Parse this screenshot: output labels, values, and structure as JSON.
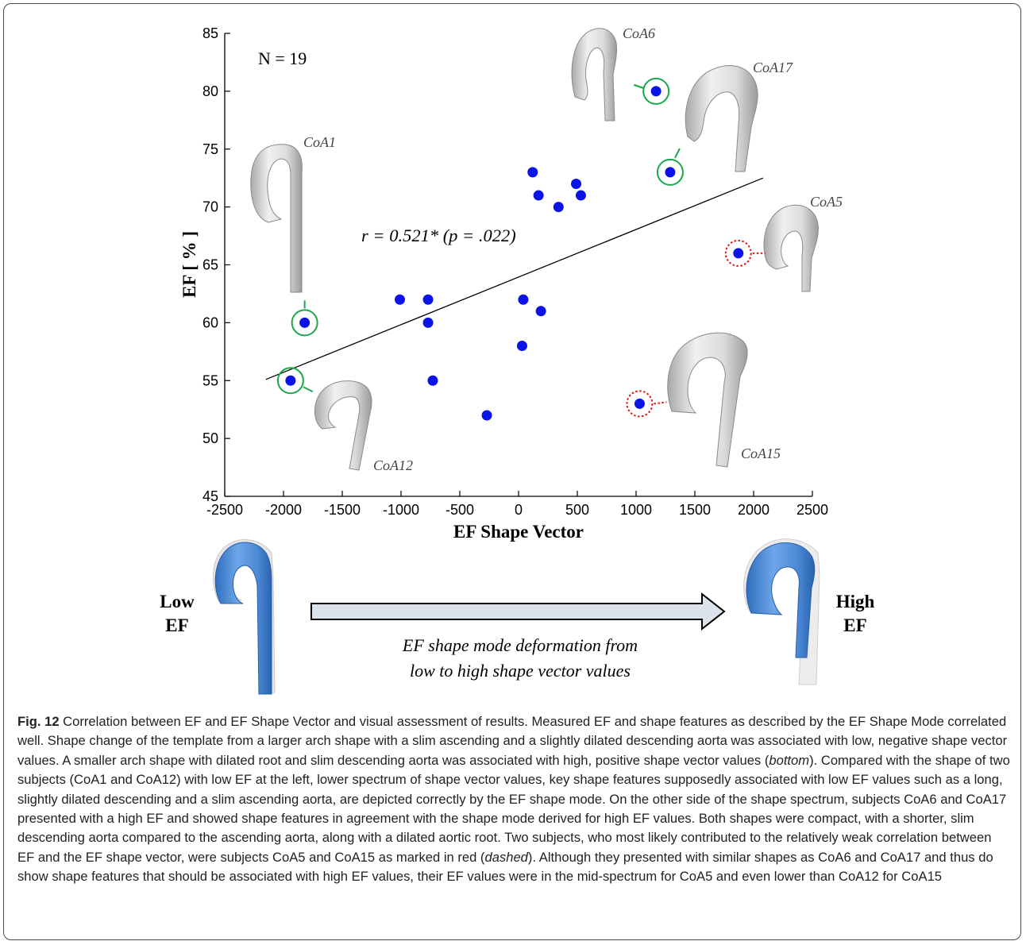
{
  "chart_data": {
    "type": "scatter",
    "annotation_n": "N = 19",
    "annotation_r": "r = 0.521* (p = .022)",
    "xlabel": "EF Shape Vector",
    "ylabel": "EF [ % ]",
    "xlim": [
      -2500,
      2500
    ],
    "ylim": [
      45,
      85
    ],
    "xticks": [
      -2500,
      -2000,
      -1500,
      -1000,
      -500,
      0,
      500,
      1000,
      1500,
      2000,
      2500
    ],
    "yticks": [
      45,
      50,
      55,
      60,
      65,
      70,
      75,
      80,
      85
    ],
    "grid": false,
    "point_color": "#0a14e6",
    "trendline": {
      "x": [
        -2150,
        2080
      ],
      "y": [
        55.1,
        72.5
      ]
    },
    "points": [
      {
        "x": -1940,
        "y": 55
      },
      {
        "x": -1820,
        "y": 60
      },
      {
        "x": -1010,
        "y": 62
      },
      {
        "x": -770,
        "y": 62
      },
      {
        "x": -770,
        "y": 60
      },
      {
        "x": -730,
        "y": 55
      },
      {
        "x": -270,
        "y": 52
      },
      {
        "x": 30,
        "y": 58
      },
      {
        "x": 40,
        "y": 62
      },
      {
        "x": 120,
        "y": 73
      },
      {
        "x": 170,
        "y": 71
      },
      {
        "x": 190,
        "y": 61
      },
      {
        "x": 340,
        "y": 70
      },
      {
        "x": 490,
        "y": 72
      },
      {
        "x": 530,
        "y": 71
      },
      {
        "x": 1030,
        "y": 53
      },
      {
        "x": 1170,
        "y": 80
      },
      {
        "x": 1290,
        "y": 73
      },
      {
        "x": 1870,
        "y": 66
      }
    ],
    "highlights": [
      {
        "label": "CoA1",
        "x": -1820,
        "y": 60,
        "style": "solid",
        "color": "#1aa84a"
      },
      {
        "label": "CoA12",
        "x": -1940,
        "y": 55,
        "style": "solid",
        "color": "#1aa84a"
      },
      {
        "label": "CoA6",
        "x": 1170,
        "y": 80,
        "style": "solid",
        "color": "#1aa84a"
      },
      {
        "label": "CoA17",
        "x": 1290,
        "y": 73,
        "style": "solid",
        "color": "#1aa84a"
      },
      {
        "label": "CoA5",
        "x": 1870,
        "y": 66,
        "style": "dashed",
        "color": "#e01818"
      },
      {
        "label": "CoA15",
        "x": 1030,
        "y": 53,
        "style": "dashed",
        "color": "#e01818"
      }
    ]
  },
  "bottom_panel": {
    "low_label": [
      "Low",
      "EF"
    ],
    "high_label": [
      "High",
      "EF"
    ],
    "arrow_caption": [
      "EF shape mode deformation from",
      "low to high shape vector values"
    ],
    "arrow_fill": "#dde3ec"
  },
  "caption": {
    "figno": "Fig. 12",
    "segments": [
      {
        "text": " Correlation between EF and EF Shape Vector and visual assessment of results. Measured EF and shape features as described by the EF Shape Mode correlated well. Shape change of the template from a larger arch shape with a slim ascending and a slightly dilated descending aorta was associated with low, negative shape vector values. A smaller arch shape with dilated root and slim descending aorta was associated with high, positive shape vector values (",
        "italic": false
      },
      {
        "text": "bottom",
        "italic": true
      },
      {
        "text": "). Compared with the shape of two subjects (CoA1 and CoA12) with low EF at the left, lower spectrum of shape vector values, key shape features supposedly associated with low EF values such as a long, slightly dilated descending and a slim ascending aorta, are depicted correctly by the EF shape mode. On the other side of the shape spectrum, subjects CoA6 and CoA17 presented with a high EF and showed shape features in agreement with the shape mode derived for high EF values. Both shapes were compact, with a shorter, slim descending aorta compared to the ascending aorta, along with a dilated aortic root. Two subjects, who most likely contributed to the relatively weak correlation between EF and the EF shape vector, were subjects CoA5 and CoA15 as marked in red (",
        "italic": false
      },
      {
        "text": "dashed",
        "italic": true
      },
      {
        "text": "). Although they presented with similar shapes as CoA6 and CoA17 and thus do show shape features that should be associated with high EF values, their EF values were in the mid-spectrum for CoA5 and even lower than CoA12 for CoA15",
        "italic": false
      }
    ]
  }
}
